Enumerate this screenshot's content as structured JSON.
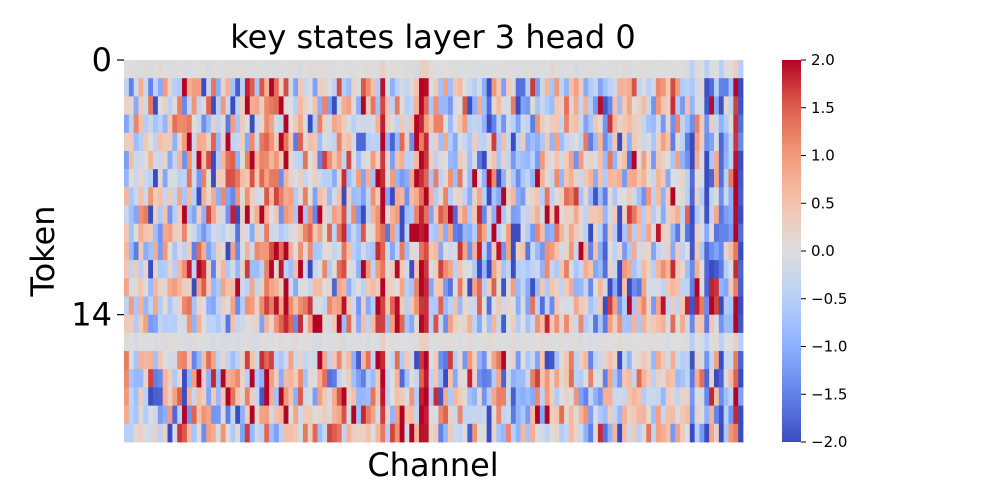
{
  "chart_data": {
    "type": "heatmap",
    "title": "key states layer 3 head 0",
    "xlabel": "Channel",
    "ylabel": "Token",
    "y_tick_labels": [
      "0",
      "14"
    ],
    "y_tick_rows": [
      0,
      14
    ],
    "x_tick_labels": [],
    "n_rows": 21,
    "n_cols": 128,
    "colormap": "coolwarm",
    "vmin": -2.0,
    "vmax": 2.0,
    "colorbar_ticks": [
      2.0,
      1.5,
      1.0,
      0.5,
      0.0,
      -0.5,
      -1.0,
      -1.5,
      -2.0
    ],
    "colorbar_tick_labels": [
      "2.0",
      "1.5",
      "1.0",
      "0.5",
      "0.0",
      "−0.5",
      "−1.0",
      "−1.5",
      "−2.0"
    ],
    "near_zero_rows": [
      0,
      15
    ],
    "strong_positive_channels": [
      53,
      61,
      62,
      126
    ],
    "strong_negative_channels": [
      117,
      120,
      123,
      127
    ],
    "colors": {
      "low": "#3b4cc0",
      "mid": "#dddddd",
      "high": "#b40426"
    }
  }
}
